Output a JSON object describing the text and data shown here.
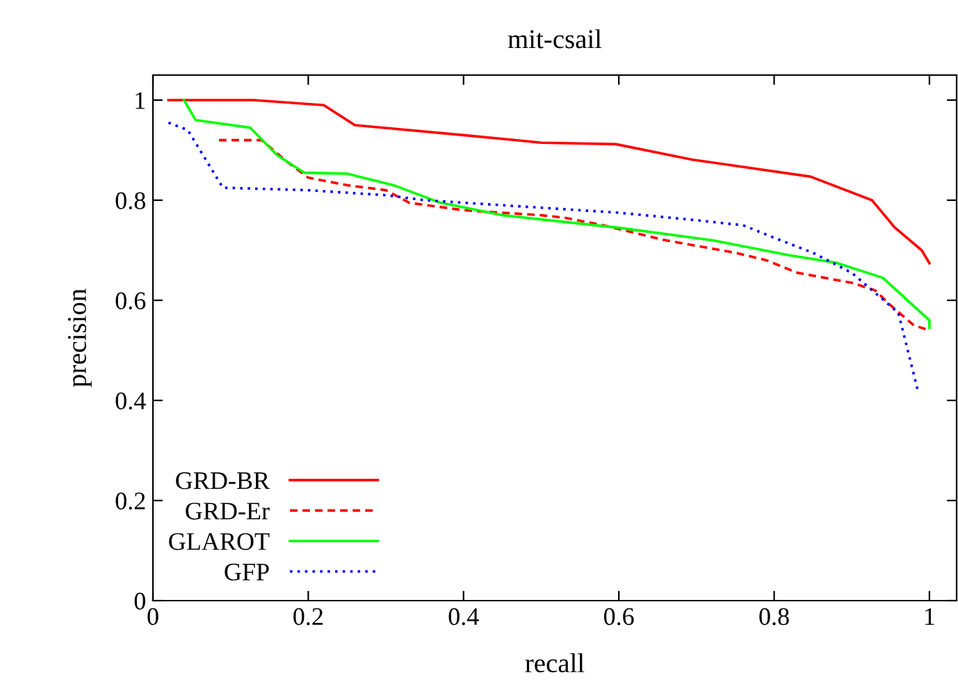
{
  "chart_data": {
    "type": "line",
    "title": "mit-csail",
    "xlabel": "recall",
    "ylabel": "precision",
    "xlim": [
      0,
      1.035
    ],
    "ylim": [
      0,
      1.05
    ],
    "xticks": [
      0,
      0.2,
      0.4,
      0.6,
      0.8,
      1
    ],
    "yticks": [
      0,
      0.2,
      0.4,
      0.6,
      0.8,
      1
    ],
    "grid": false,
    "legend": "bottom left",
    "marker": "none",
    "series": [
      {
        "name": "GRD-BR",
        "color": "#ff0000",
        "line_style": "solid",
        "x": [
          0.02,
          0.13,
          0.22,
          0.26,
          0.4,
          0.5,
          0.596,
          0.695,
          0.847,
          0.926,
          0.955,
          0.99,
          1.0
        ],
        "values": [
          1,
          1,
          0.99,
          0.95,
          0.93,
          0.915,
          0.912,
          0.881,
          0.847,
          0.8,
          0.746,
          0.7,
          0.674
        ]
      },
      {
        "name": "GRD-Er",
        "color": "#ff0000",
        "line_style": "dashed",
        "x": [
          0.085,
          0.14,
          0.17,
          0.2,
          0.25,
          0.3,
          0.33,
          0.4,
          0.5,
          0.53,
          0.58,
          0.66,
          0.75,
          0.79,
          0.83,
          0.9,
          0.93,
          0.95,
          0.98,
          1.0
        ],
        "values": [
          0.92,
          0.92,
          0.88,
          0.845,
          0.83,
          0.82,
          0.795,
          0.78,
          0.77,
          0.765,
          0.75,
          0.72,
          0.695,
          0.68,
          0.655,
          0.635,
          0.62,
          0.59,
          0.55,
          0.54
        ]
      },
      {
        "name": "GLAROT",
        "color": "#00ff00",
        "line_style": "solid",
        "x": [
          0.04,
          0.055,
          0.125,
          0.16,
          0.195,
          0.25,
          0.31,
          0.37,
          0.45,
          0.6,
          0.72,
          0.82,
          0.88,
          0.94,
          1.0,
          1.0
        ],
        "values": [
          1.0,
          0.96,
          0.945,
          0.89,
          0.855,
          0.853,
          0.83,
          0.795,
          0.77,
          0.745,
          0.72,
          0.69,
          0.675,
          0.645,
          0.56,
          0.545
        ]
      },
      {
        "name": "GFP",
        "color": "#0000ff",
        "line_style": "dotted",
        "x": [
          0.02,
          0.045,
          0.09,
          0.2,
          0.3,
          0.35,
          0.5,
          0.6,
          0.7,
          0.76,
          0.8,
          0.85,
          0.9,
          0.93,
          0.96,
          0.985
        ],
        "values": [
          0.955,
          0.94,
          0.825,
          0.82,
          0.81,
          0.8,
          0.785,
          0.775,
          0.76,
          0.75,
          0.725,
          0.695,
          0.655,
          0.615,
          0.575,
          0.42
        ]
      }
    ]
  }
}
